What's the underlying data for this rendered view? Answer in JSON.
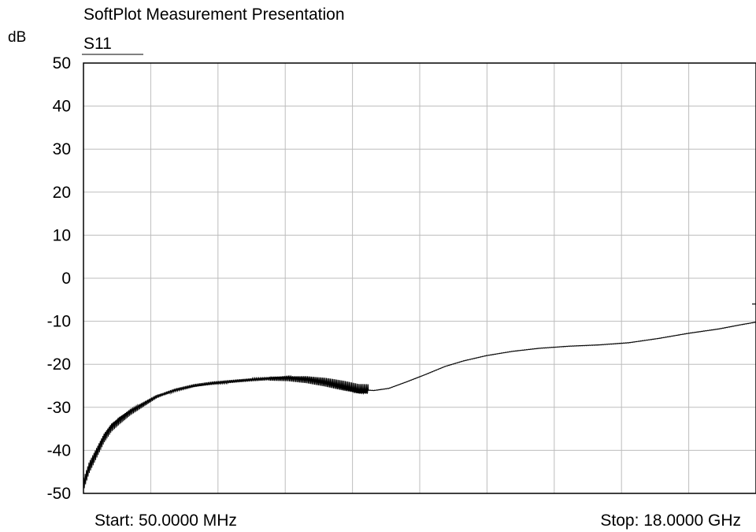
{
  "chart_data": {
    "type": "line",
    "title": "SoftPlot Measurement Presentation",
    "ylabel": "dB",
    "ylim": [
      -50,
      50
    ],
    "y_ticks": [
      "50",
      "40",
      "30",
      "20",
      "10",
      "0",
      "-10",
      "-20",
      "-30",
      "-40",
      "-50"
    ],
    "grid": true,
    "x_divisions": 10,
    "x_start_label": "Start: 50.0000 MHz",
    "x_stop_label": "Stop: 18.0000 GHz",
    "x_range_ghz": [
      0.05,
      18.0
    ],
    "legend": "top-left",
    "series": [
      {
        "name": "S11",
        "color": "#000000",
        "x_ghz": [
          0.05,
          0.2,
          0.4,
          0.6,
          0.8,
          1.0,
          1.3,
          1.6,
          2.0,
          2.5,
          3.0,
          3.5,
          4.0,
          4.5,
          5.0,
          5.5,
          6.0,
          6.5,
          7.0,
          7.4,
          7.6,
          7.8,
          8.2,
          8.7,
          9.2,
          9.7,
          10.2,
          10.8,
          11.5,
          12.2,
          13.0,
          13.8,
          14.6,
          15.4,
          16.2,
          17.0,
          17.6,
          18.0
        ],
        "values": [
          -48,
          -44,
          -40.5,
          -37,
          -34.5,
          -33,
          -31,
          -29.5,
          -27.5,
          -26,
          -25,
          -24.4,
          -24,
          -23.6,
          -23.3,
          -23.2,
          -23.5,
          -24.2,
          -25.2,
          -26,
          -26,
          -26.1,
          -25.6,
          -24,
          -22.3,
          -20.5,
          -19.2,
          -18,
          -17,
          -16.3,
          -15.8,
          -15.5,
          -15,
          -14,
          -12.8,
          -11.8,
          -10.8,
          -10.2
        ]
      }
    ],
    "annotation_marker": {
      "x_ghz": 18.0,
      "y": -6
    }
  }
}
